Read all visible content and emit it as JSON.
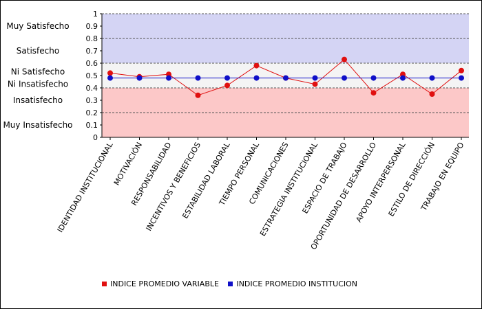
{
  "colors": {
    "variable": "#e01010",
    "institucion": "#1010c8",
    "band_satisfied": "#d4d4f4",
    "band_neutral": "#f4f4f4",
    "band_unsatisfied": "#fcc8c8"
  },
  "legend": {
    "variable_label": "INDICE PROMEDIO VARIABLE",
    "institucion_label": "INDICE PROMEDIO INSTITUCION"
  },
  "chart_data": {
    "type": "line",
    "categories": [
      "IDENTIDAD INSTITUCIONAL",
      "MOTIVACIÓN",
      "RESPONSABILIDAD",
      "INCENTIVOS Y BENEFICIOS",
      "ESTABILIDAD LABORAL",
      "TIEMPO PERSONAL",
      "COMUNICACIONES",
      "ESTRATEGIA INSTITUCIONAL",
      "ESPACIO DE TRABAJO",
      "OPORTUNIDAD DE DESARROLLO",
      "APOYO INTERPERSONAL",
      "ESTILO DE DIRECCIÓN",
      "TRABAJO EN EQUIPO"
    ],
    "series": [
      {
        "name": "INDICE PROMEDIO VARIABLE",
        "values": [
          0.52,
          0.49,
          0.51,
          0.34,
          0.42,
          0.58,
          0.48,
          0.43,
          0.63,
          0.36,
          0.51,
          0.35,
          0.54
        ]
      },
      {
        "name": "INDICE PROMEDIO INSTITUCION",
        "values": [
          0.48,
          0.48,
          0.48,
          0.48,
          0.48,
          0.48,
          0.48,
          0.48,
          0.48,
          0.48,
          0.48,
          0.48,
          0.48
        ]
      }
    ],
    "ylim": [
      0,
      1
    ],
    "yticks": [
      "0",
      "0.1",
      "0.2",
      "0.3",
      "0.4",
      "0.5",
      "0.6",
      "0.7",
      "0.8",
      "0.9",
      "1"
    ],
    "bands": [
      {
        "label": "Muy Satisfecho",
        "from": 0.8,
        "to": 1.0,
        "tone": "satisfied"
      },
      {
        "label": "Satisfecho",
        "from": 0.6,
        "to": 0.8,
        "tone": "satisfied"
      },
      {
        "label": "Ni Satisfecho",
        "from": 0.5,
        "to": 0.6,
        "tone": "neutral"
      },
      {
        "label": "Ni Insatisfecho",
        "from": 0.4,
        "to": 0.5,
        "tone": "neutral"
      },
      {
        "label": "Insatisfecho",
        "from": 0.2,
        "to": 0.4,
        "tone": "unsatisfied"
      },
      {
        "label": "Muy Insatisfecho",
        "from": 0.0,
        "to": 0.2,
        "tone": "unsatisfied"
      }
    ],
    "legend_position": "bottom"
  }
}
